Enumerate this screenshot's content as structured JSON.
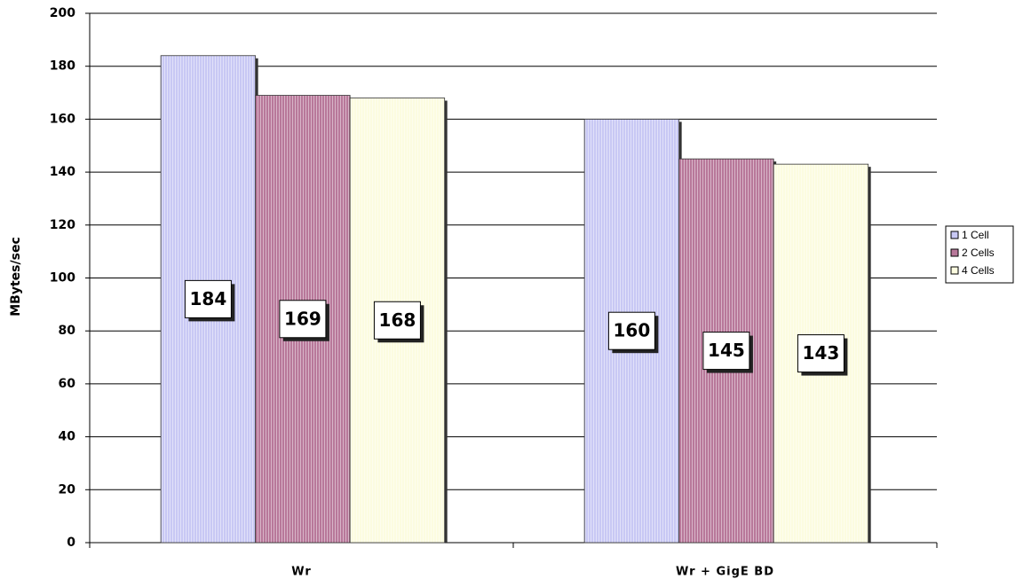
{
  "chart_data": {
    "type": "bar",
    "y_label": "MBytes/sec",
    "categories": [
      "Wr",
      "Wr + GigE BD"
    ],
    "series": [
      {
        "name": "1 Cell",
        "color": "#c8c8f4",
        "values": [
          184,
          160
        ]
      },
      {
        "name": "2 Cells",
        "color": "#b8789a",
        "values": [
          169,
          145
        ]
      },
      {
        "name": "4 Cells",
        "color": "#fcfce0",
        "values": [
          168,
          143
        ]
      }
    ],
    "ylim": [
      0,
      200
    ],
    "yticks": [
      0,
      20,
      40,
      60,
      80,
      100,
      120,
      140,
      160,
      180,
      200
    ],
    "grid": true,
    "legend": "right"
  }
}
